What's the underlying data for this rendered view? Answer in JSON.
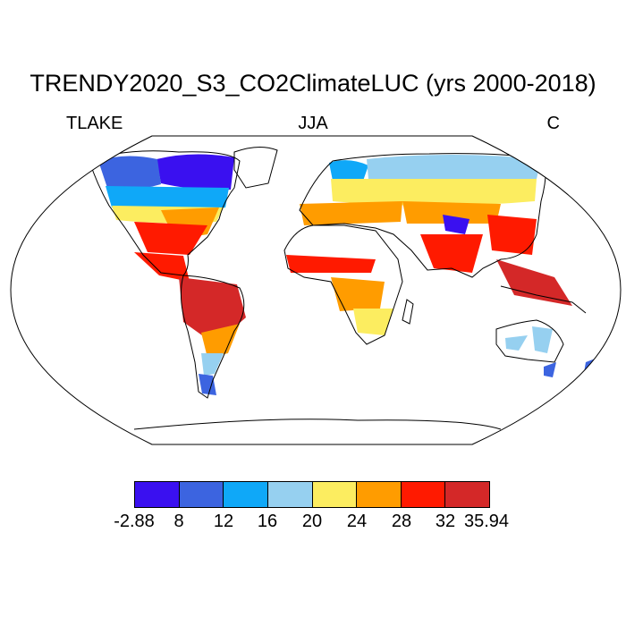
{
  "title": "TRENDY2020_S3_CO2ClimateLUC (yrs 2000-2018)",
  "subtitle": {
    "left": "TLAKE",
    "center": "JJA",
    "right": "C"
  },
  "colorbar": {
    "colors": [
      "#3a10f0",
      "#3c64e0",
      "#0fa8f8",
      "#96d0f0",
      "#fced60",
      "#ff9c00",
      "#ff1a00",
      "#d42828"
    ],
    "labels": [
      "-2.88",
      "8",
      "12",
      "16",
      "20",
      "24",
      "28",
      "32",
      "35.94"
    ]
  }
}
